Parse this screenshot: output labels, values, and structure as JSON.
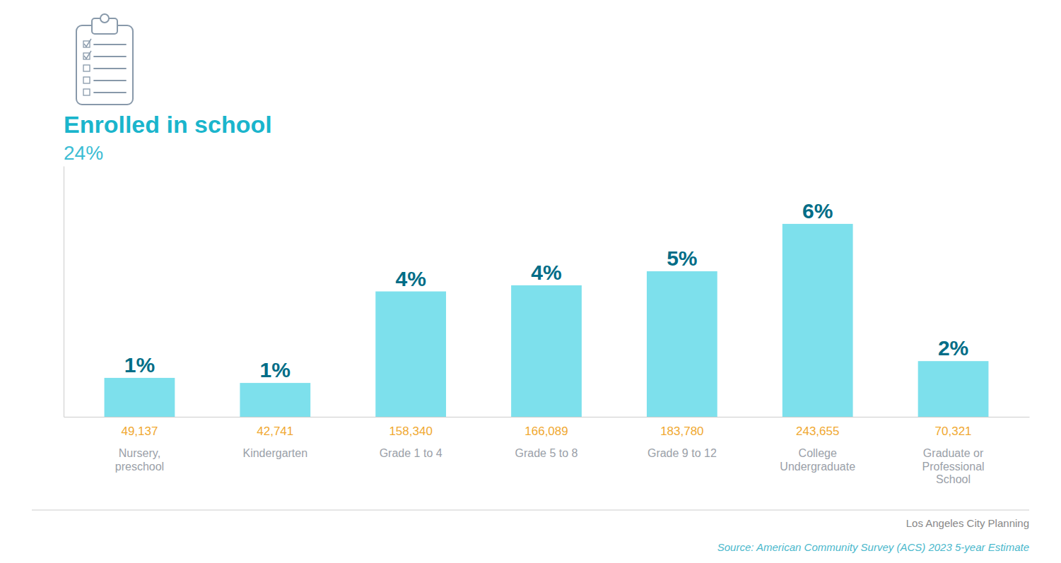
{
  "chart_data": {
    "type": "bar",
    "title": "Enrolled in school",
    "subtitle": "24%",
    "categories": [
      "Nursery,\npreschool",
      "Kindergarten",
      "Grade 1 to 4",
      "Grade 5 to 8",
      "Grade 9 to 12",
      "College\nUndergraduate",
      "Graduate or\nProfessional\nSchool"
    ],
    "values": [
      49137,
      42741,
      158340,
      166089,
      183780,
      243655,
      70321
    ],
    "value_labels": [
      "49,137",
      "42,741",
      "158,340",
      "166,089",
      "183,780",
      "243,655",
      "70,321"
    ],
    "percentages": [
      "1%",
      "1%",
      "4%",
      "4%",
      "5%",
      "6%",
      "2%"
    ],
    "annotations": [
      "Los Angeles City Planning",
      "Source: American Community Survey (ACS) 2023 5-year Estimate"
    ],
    "color": "#7de0ec",
    "ylim": [
      0,
      316751.5
    ],
    "yticks": [],
    "grid": false,
    "data_labels": true,
    "tick_labels": "x"
  }
}
